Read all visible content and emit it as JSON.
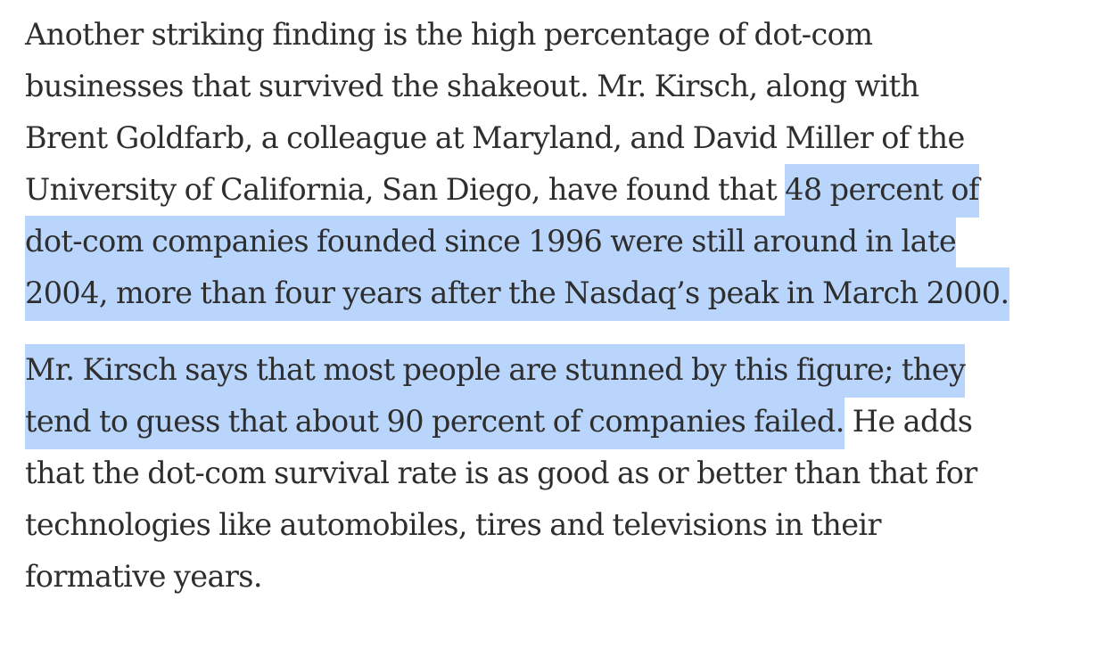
{
  "article": {
    "paragraphs": [
      {
        "lines": [
          {
            "segments": [
              {
                "text": "Another striking finding is the high percentage of dot-com",
                "highlighted": false
              }
            ]
          },
          {
            "segments": [
              {
                "text": "businesses that survived the shakeout. Mr. Kirsch, along with",
                "highlighted": false
              }
            ]
          },
          {
            "segments": [
              {
                "text": "Brent Goldfarb, a colleague at Maryland, and David Miller of the",
                "highlighted": false
              }
            ]
          },
          {
            "segments": [
              {
                "text": "University of California, San Diego, have found that ",
                "highlighted": false
              },
              {
                "text": "48 percent of",
                "highlighted": true
              }
            ]
          },
          {
            "segments": [
              {
                "text": "dot-com companies founded since 1996 were still around in late",
                "highlighted": true
              }
            ]
          },
          {
            "segments": [
              {
                "text": "2004, more than four years after the Nasdaq’s peak in March 2000.",
                "highlighted": true
              }
            ]
          }
        ]
      },
      {
        "lines": [
          {
            "segments": [
              {
                "text": "Mr. Kirsch says that most people are stunned by this figure; they",
                "highlighted": true
              }
            ]
          },
          {
            "segments": [
              {
                "text": "tend to guess that about 90 percent of companies failed.",
                "highlighted": true
              },
              {
                "text": " He adds",
                "highlighted": false
              }
            ]
          },
          {
            "segments": [
              {
                "text": "that the dot-com survival rate is as good as or better than that for",
                "highlighted": false
              }
            ]
          },
          {
            "segments": [
              {
                "text": "technologies like automobiles, tires and televisions in their",
                "highlighted": false
              }
            ]
          },
          {
            "segments": [
              {
                "text": "formative years.",
                "highlighted": false
              }
            ]
          }
        ]
      }
    ]
  },
  "colors": {
    "text": "#2e2e2e",
    "highlight": "#b9d5fb",
    "background": "#ffffff"
  }
}
